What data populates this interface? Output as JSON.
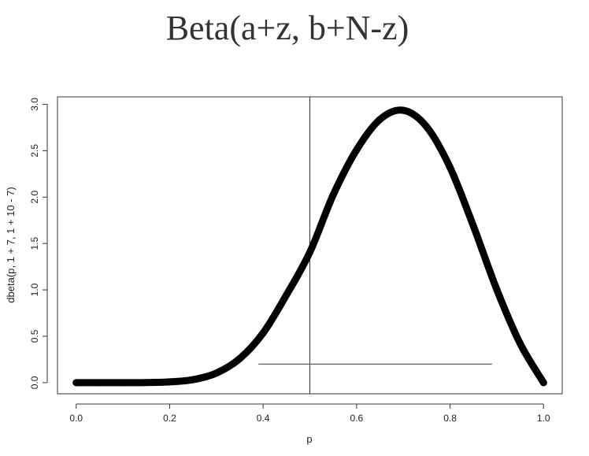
{
  "chart_data": {
    "type": "line",
    "title": "Beta(a+z, b+N-z)",
    "xlabel": "p",
    "ylabel": "dbeta(p, 1 + 7, 1 + 10 - 7)",
    "xlim": [
      -0.04,
      1.04
    ],
    "ylim": [
      -0.12,
      3.08
    ],
    "x_ticks": [
      0.0,
      0.2,
      0.4,
      0.6,
      0.8,
      1.0
    ],
    "x_tick_labels": [
      "0.0",
      "0.2",
      "0.4",
      "0.6",
      "0.8",
      "1.0"
    ],
    "y_ticks": [
      0.0,
      0.5,
      1.0,
      1.5,
      2.0,
      2.5,
      3.0
    ],
    "y_tick_labels": [
      "0.0",
      "0.5",
      "1.0",
      "1.5",
      "2.0",
      "2.5",
      "3.0"
    ],
    "grid": false,
    "series": [
      {
        "points": [
          [
            0.0,
            0.0
          ],
          [
            0.05,
            0.0
          ],
          [
            0.1,
            0.0
          ],
          [
            0.15,
            0.001
          ],
          [
            0.2,
            0.008
          ],
          [
            0.25,
            0.032
          ],
          [
            0.3,
            0.103
          ],
          [
            0.35,
            0.259
          ],
          [
            0.4,
            0.535
          ],
          [
            0.45,
            0.946
          ],
          [
            0.5,
            1.406
          ],
          [
            0.55,
            2.024
          ],
          [
            0.6,
            2.508
          ],
          [
            0.65,
            2.837
          ],
          [
            0.7,
            2.935
          ],
          [
            0.75,
            2.757
          ],
          [
            0.8,
            2.319
          ],
          [
            0.85,
            1.687
          ],
          [
            0.9,
            1.003
          ],
          [
            0.95,
            0.421
          ],
          [
            1.0,
            0.0
          ]
        ]
      }
    ],
    "annotations": {
      "vertical_line_x": 0.5,
      "horizontal_segment": {
        "x_from": 0.39,
        "x_to": 0.89,
        "y": 0.2
      }
    }
  }
}
